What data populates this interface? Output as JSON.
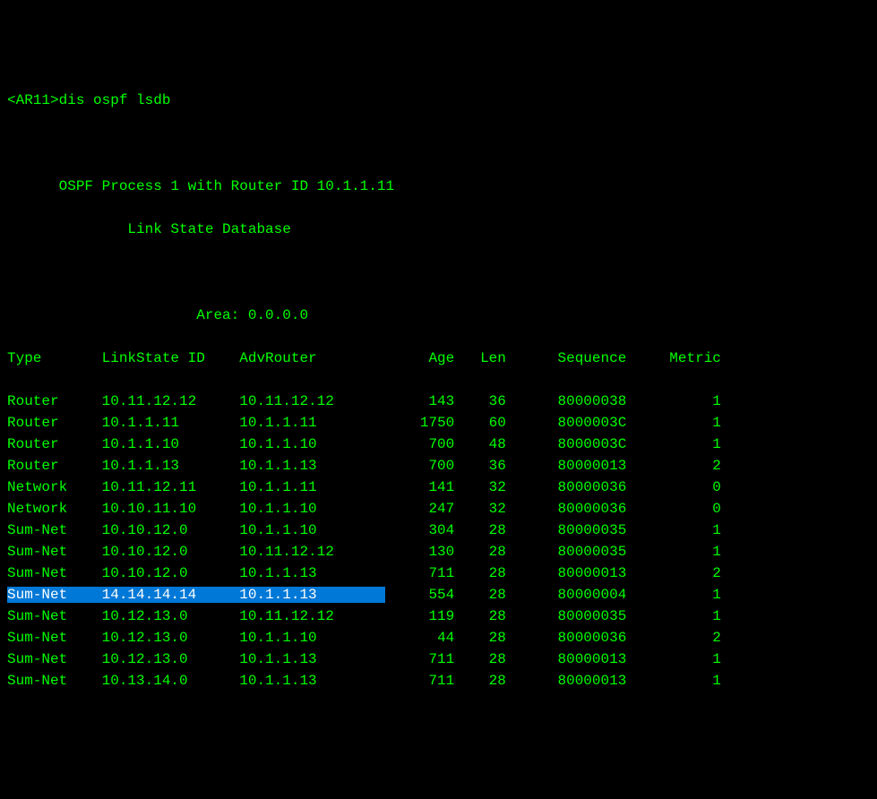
{
  "prompt": "<AR11>",
  "command": "dis ospf lsdb",
  "process_line": "OSPF Process 1 with Router ID 10.1.1.11",
  "lsdb_line": "Link State Database",
  "area_line": "Area: 0.0.0.0",
  "columns": {
    "type": "Type",
    "linkstate": "LinkState ID",
    "advrouter": "AdvRouter",
    "age": "Age",
    "len": "Len",
    "sequence": "Sequence",
    "metric": "Metric"
  },
  "rows": [
    {
      "type": "Router",
      "linkstate": "10.11.12.12",
      "advrouter": "10.11.12.12",
      "age": "143",
      "len": "36",
      "sequence": "80000038",
      "metric": "1",
      "highlighted": false
    },
    {
      "type": "Router",
      "linkstate": "10.1.1.11",
      "advrouter": "10.1.1.11",
      "age": "1750",
      "len": "60",
      "sequence": "8000003C",
      "metric": "1",
      "highlighted": false
    },
    {
      "type": "Router",
      "linkstate": "10.1.1.10",
      "advrouter": "10.1.1.10",
      "age": "700",
      "len": "48",
      "sequence": "8000003C",
      "metric": "1",
      "highlighted": false
    },
    {
      "type": "Router",
      "linkstate": "10.1.1.13",
      "advrouter": "10.1.1.13",
      "age": "700",
      "len": "36",
      "sequence": "80000013",
      "metric": "2",
      "highlighted": false
    },
    {
      "type": "Network",
      "linkstate": "10.11.12.11",
      "advrouter": "10.1.1.11",
      "age": "141",
      "len": "32",
      "sequence": "80000036",
      "metric": "0",
      "highlighted": false
    },
    {
      "type": "Network",
      "linkstate": "10.10.11.10",
      "advrouter": "10.1.1.10",
      "age": "247",
      "len": "32",
      "sequence": "80000036",
      "metric": "0",
      "highlighted": false
    },
    {
      "type": "Sum-Net",
      "linkstate": "10.10.12.0",
      "advrouter": "10.1.1.10",
      "age": "304",
      "len": "28",
      "sequence": "80000035",
      "metric": "1",
      "highlighted": false
    },
    {
      "type": "Sum-Net",
      "linkstate": "10.10.12.0",
      "advrouter": "10.11.12.12",
      "age": "130",
      "len": "28",
      "sequence": "80000035",
      "metric": "1",
      "highlighted": false
    },
    {
      "type": "Sum-Net",
      "linkstate": "10.10.12.0",
      "advrouter": "10.1.1.13",
      "age": "711",
      "len": "28",
      "sequence": "80000013",
      "metric": "2",
      "highlighted": false
    },
    {
      "type": "Sum-Net",
      "linkstate": "14.14.14.14",
      "advrouter": "10.1.1.13",
      "age": "554",
      "len": "28",
      "sequence": "80000004",
      "metric": "1",
      "highlighted": true
    },
    {
      "type": "Sum-Net",
      "linkstate": "10.12.13.0",
      "advrouter": "10.11.12.12",
      "age": "119",
      "len": "28",
      "sequence": "80000035",
      "metric": "1",
      "highlighted": false
    },
    {
      "type": "Sum-Net",
      "linkstate": "10.12.13.0",
      "advrouter": "10.1.1.10",
      "age": "44",
      "len": "28",
      "sequence": "80000036",
      "metric": "2",
      "highlighted": false
    },
    {
      "type": "Sum-Net",
      "linkstate": "10.12.13.0",
      "advrouter": "10.1.1.13",
      "age": "711",
      "len": "28",
      "sequence": "80000013",
      "metric": "1",
      "highlighted": false
    },
    {
      "type": "Sum-Net",
      "linkstate": "10.13.14.0",
      "advrouter": "10.1.1.13",
      "age": "711",
      "len": "28",
      "sequence": "80000013",
      "metric": "1",
      "highlighted": false
    }
  ],
  "colors": {
    "background": "#000000",
    "text": "#00ff00",
    "highlight_bg": "#0078d7",
    "highlight_text": "#ffffff"
  }
}
